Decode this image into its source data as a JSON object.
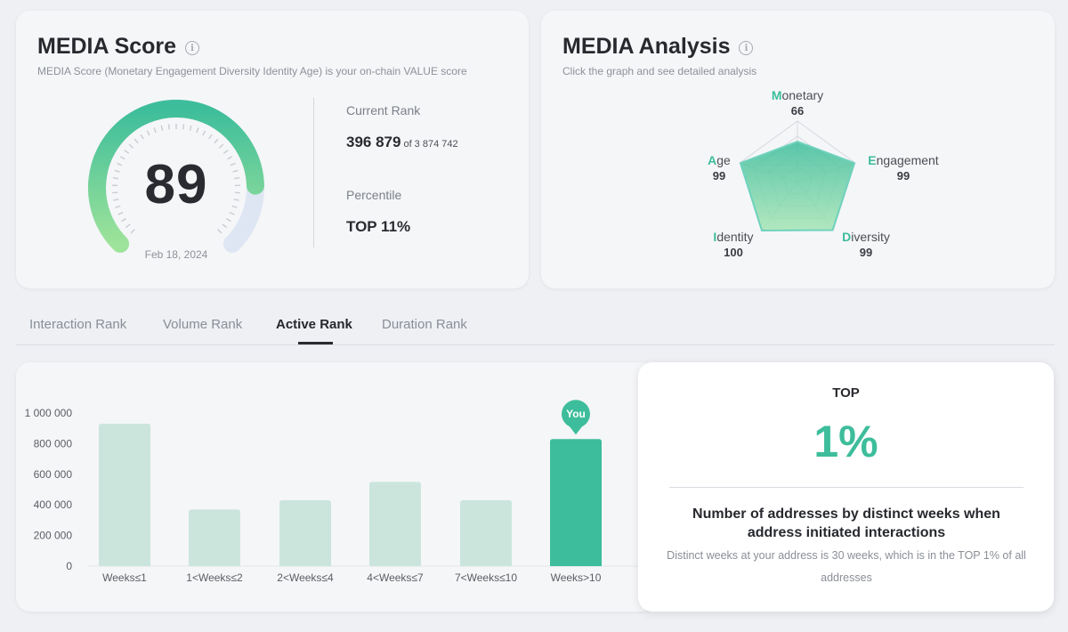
{
  "score": {
    "title": "MEDIA Score",
    "subtitle": "MEDIA Score (Monetary Engagement Diversity Identity Age) is your on-chain VALUE score",
    "value": "89",
    "value_fraction": 0.89,
    "date": "Feb 18, 2024",
    "current_rank_label": "Current Rank",
    "current_rank": "396 879",
    "rank_of": "of 3 874 742",
    "percentile_label": "Percentile",
    "percentile": "TOP 11%"
  },
  "analysis": {
    "title": "MEDIA Analysis",
    "subtitle": "Click the graph and see detailed analysis",
    "axes": [
      {
        "initial": "M",
        "rest": "onetary",
        "value": "66",
        "num": 66
      },
      {
        "initial": "E",
        "rest": "ngagement",
        "value": "99",
        "num": 99
      },
      {
        "initial": "D",
        "rest": "iversity",
        "value": "99",
        "num": 99
      },
      {
        "initial": "I",
        "rest": "dentity",
        "value": "100",
        "num": 100
      },
      {
        "initial": "A",
        "rest": "ge",
        "value": "99",
        "num": 99
      }
    ]
  },
  "tabs": [
    {
      "label": "Interaction Rank",
      "active": false
    },
    {
      "label": "Volume Rank",
      "active": false
    },
    {
      "label": "Active Rank",
      "active": true
    },
    {
      "label": "Duration Rank",
      "active": false
    }
  ],
  "chart_data": {
    "type": "bar",
    "title": "",
    "xlabel": "",
    "ylabel": "",
    "ylim": [
      0,
      1000000
    ],
    "yticks": [
      0,
      200000,
      400000,
      600000,
      800000,
      1000000
    ],
    "ytick_labels": [
      "0",
      "200 000",
      "400 000",
      "600 000",
      "800 000",
      "1 000 000"
    ],
    "categories": [
      "Weeks≤1",
      "1<Weeks≤2",
      "2<Weeks≤4",
      "4<Weeks≤7",
      "7<Weeks≤10",
      "Weeks>10"
    ],
    "values": [
      930000,
      370000,
      430000,
      550000,
      430000,
      830000
    ],
    "highlight_index": 5,
    "highlight_label": "You",
    "colors": {
      "bar": "#cbe5dd",
      "highlight": "#3dbd9b"
    }
  },
  "top": {
    "label": "TOP",
    "value": "1%",
    "title": "Number of addresses by distinct weeks when address initiated interactions",
    "description": "Distinct weeks at your address is 30 weeks, which is in the TOP 1% of all addresses"
  },
  "colors": {
    "accent": "#3dbd9b",
    "gauge_start": "#9ee39a",
    "gauge_end": "#3dbd9b",
    "gauge_track": "#dfe6f3"
  }
}
